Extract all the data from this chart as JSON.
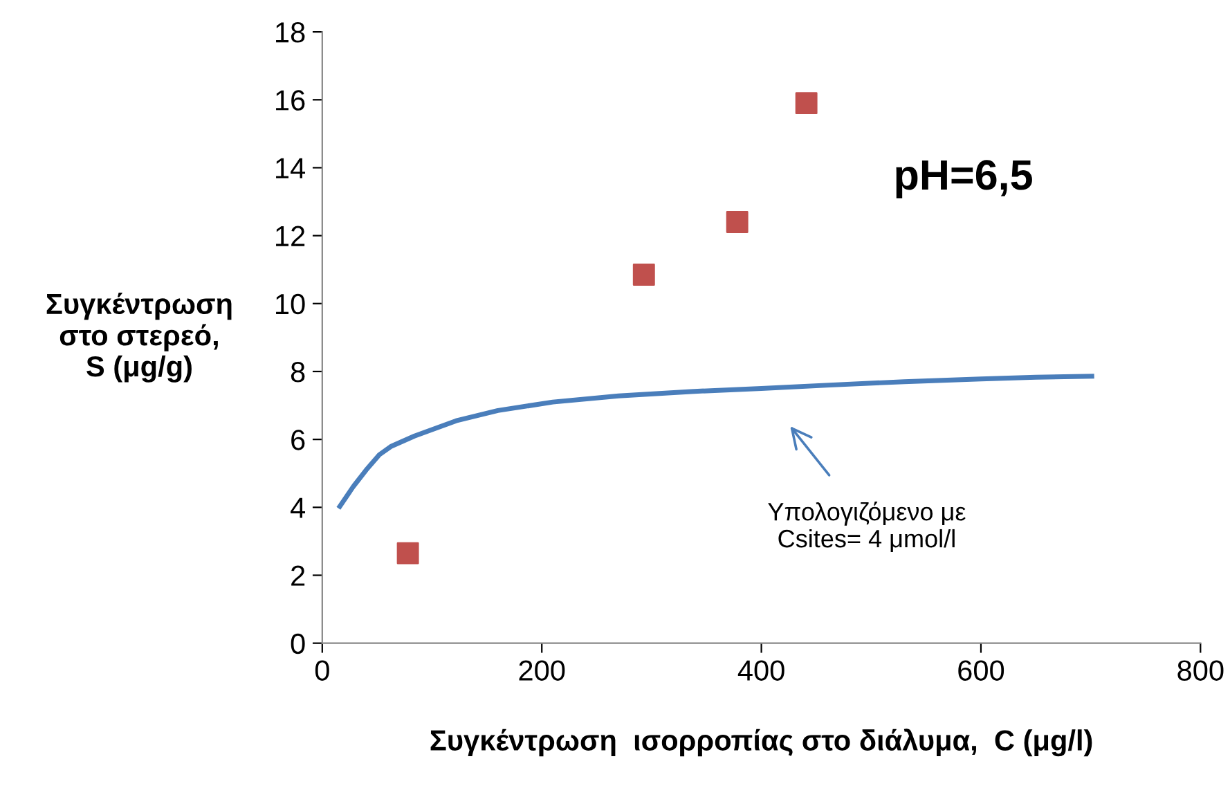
{
  "chart_data": {
    "type": "scatter",
    "xlabel": "Συγκέντρωση  ισορροπίας στο διάλυμα,  C (μg/l)",
    "ylabel": "Συγκέντρωση\nστο στερεό,\nS (μg/g)",
    "xlim": [
      0,
      800
    ],
    "xticks": [
      0,
      200,
      400,
      600,
      800
    ],
    "ylim": [
      0,
      18
    ],
    "yticks": [
      0,
      2,
      4,
      6,
      8,
      10,
      12,
      14,
      16,
      18
    ],
    "grid": false,
    "legend": false,
    "series": [
      {
        "color": "#c0504d",
        "marker": "square",
        "x": [
          78,
          293,
          378,
          441
        ],
        "values": [
          2.65,
          10.85,
          12.4,
          15.9
        ]
      },
      {
        "type": "line",
        "color": "#4a7ebb",
        "marker": "none",
        "line_style": "solid",
        "x": [
          16,
          28,
          40,
          52,
          63,
          84,
          122,
          160,
          210,
          270,
          336,
          400,
          462,
          530,
          600,
          650,
          701
        ],
        "values": [
          4.03,
          4.6,
          5.1,
          5.55,
          5.8,
          6.1,
          6.55,
          6.85,
          7.1,
          7.28,
          7.41,
          7.5,
          7.6,
          7.7,
          7.78,
          7.83,
          7.86
        ]
      }
    ],
    "annotations": [
      "Υπολογιζόμενο με\nCsites= 4 μmol/l",
      "pH=6,5"
    ]
  }
}
